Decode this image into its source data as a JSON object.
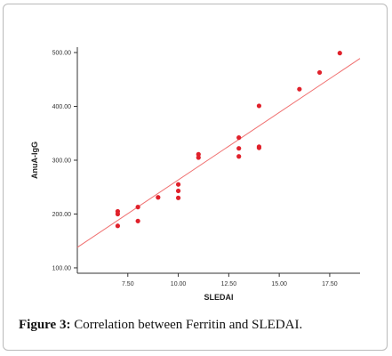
{
  "caption": {
    "label": "Figure 3:",
    "text": " Correlation between Ferritin and SLEDAI."
  },
  "colors": {
    "points": "#e0212b",
    "fit_line": "#f07070",
    "axis": "#333333",
    "frame": "#b9b9b9"
  },
  "chart_data": {
    "type": "scatter",
    "xlabel": "SLEDAI",
    "ylabel": "AnuA-IgG",
    "xlim": [
      5.0,
      19.0
    ],
    "ylim": [
      90,
      510
    ],
    "x_ticks": [
      "7.50",
      "10.00",
      "12.50",
      "15.00",
      "17.50"
    ],
    "x_tick_values": [
      7.5,
      10.0,
      12.5,
      15.0,
      17.5
    ],
    "y_ticks": [
      "100.00",
      "200.00",
      "300.00",
      "400.00",
      "500.00"
    ],
    "y_tick_values": [
      100,
      200,
      300,
      400,
      500
    ],
    "grid": false,
    "points": [
      {
        "x": 7,
        "y": 205
      },
      {
        "x": 7,
        "y": 200
      },
      {
        "x": 7,
        "y": 178
      },
      {
        "x": 8,
        "y": 213
      },
      {
        "x": 8,
        "y": 187
      },
      {
        "x": 9,
        "y": 231
      },
      {
        "x": 10,
        "y": 255
      },
      {
        "x": 10,
        "y": 243
      },
      {
        "x": 10,
        "y": 230
      },
      {
        "x": 11,
        "y": 311
      },
      {
        "x": 11,
        "y": 305
      },
      {
        "x": 13,
        "y": 342
      },
      {
        "x": 13,
        "y": 322
      },
      {
        "x": 13,
        "y": 307
      },
      {
        "x": 14,
        "y": 401
      },
      {
        "x": 14,
        "y": 325
      },
      {
        "x": 14,
        "y": 323
      },
      {
        "x": 16,
        "y": 432
      },
      {
        "x": 17,
        "y": 463
      },
      {
        "x": 18,
        "y": 499
      }
    ],
    "fit_line": {
      "x": [
        5.0,
        19.0
      ],
      "y": [
        138,
        489
      ]
    }
  }
}
